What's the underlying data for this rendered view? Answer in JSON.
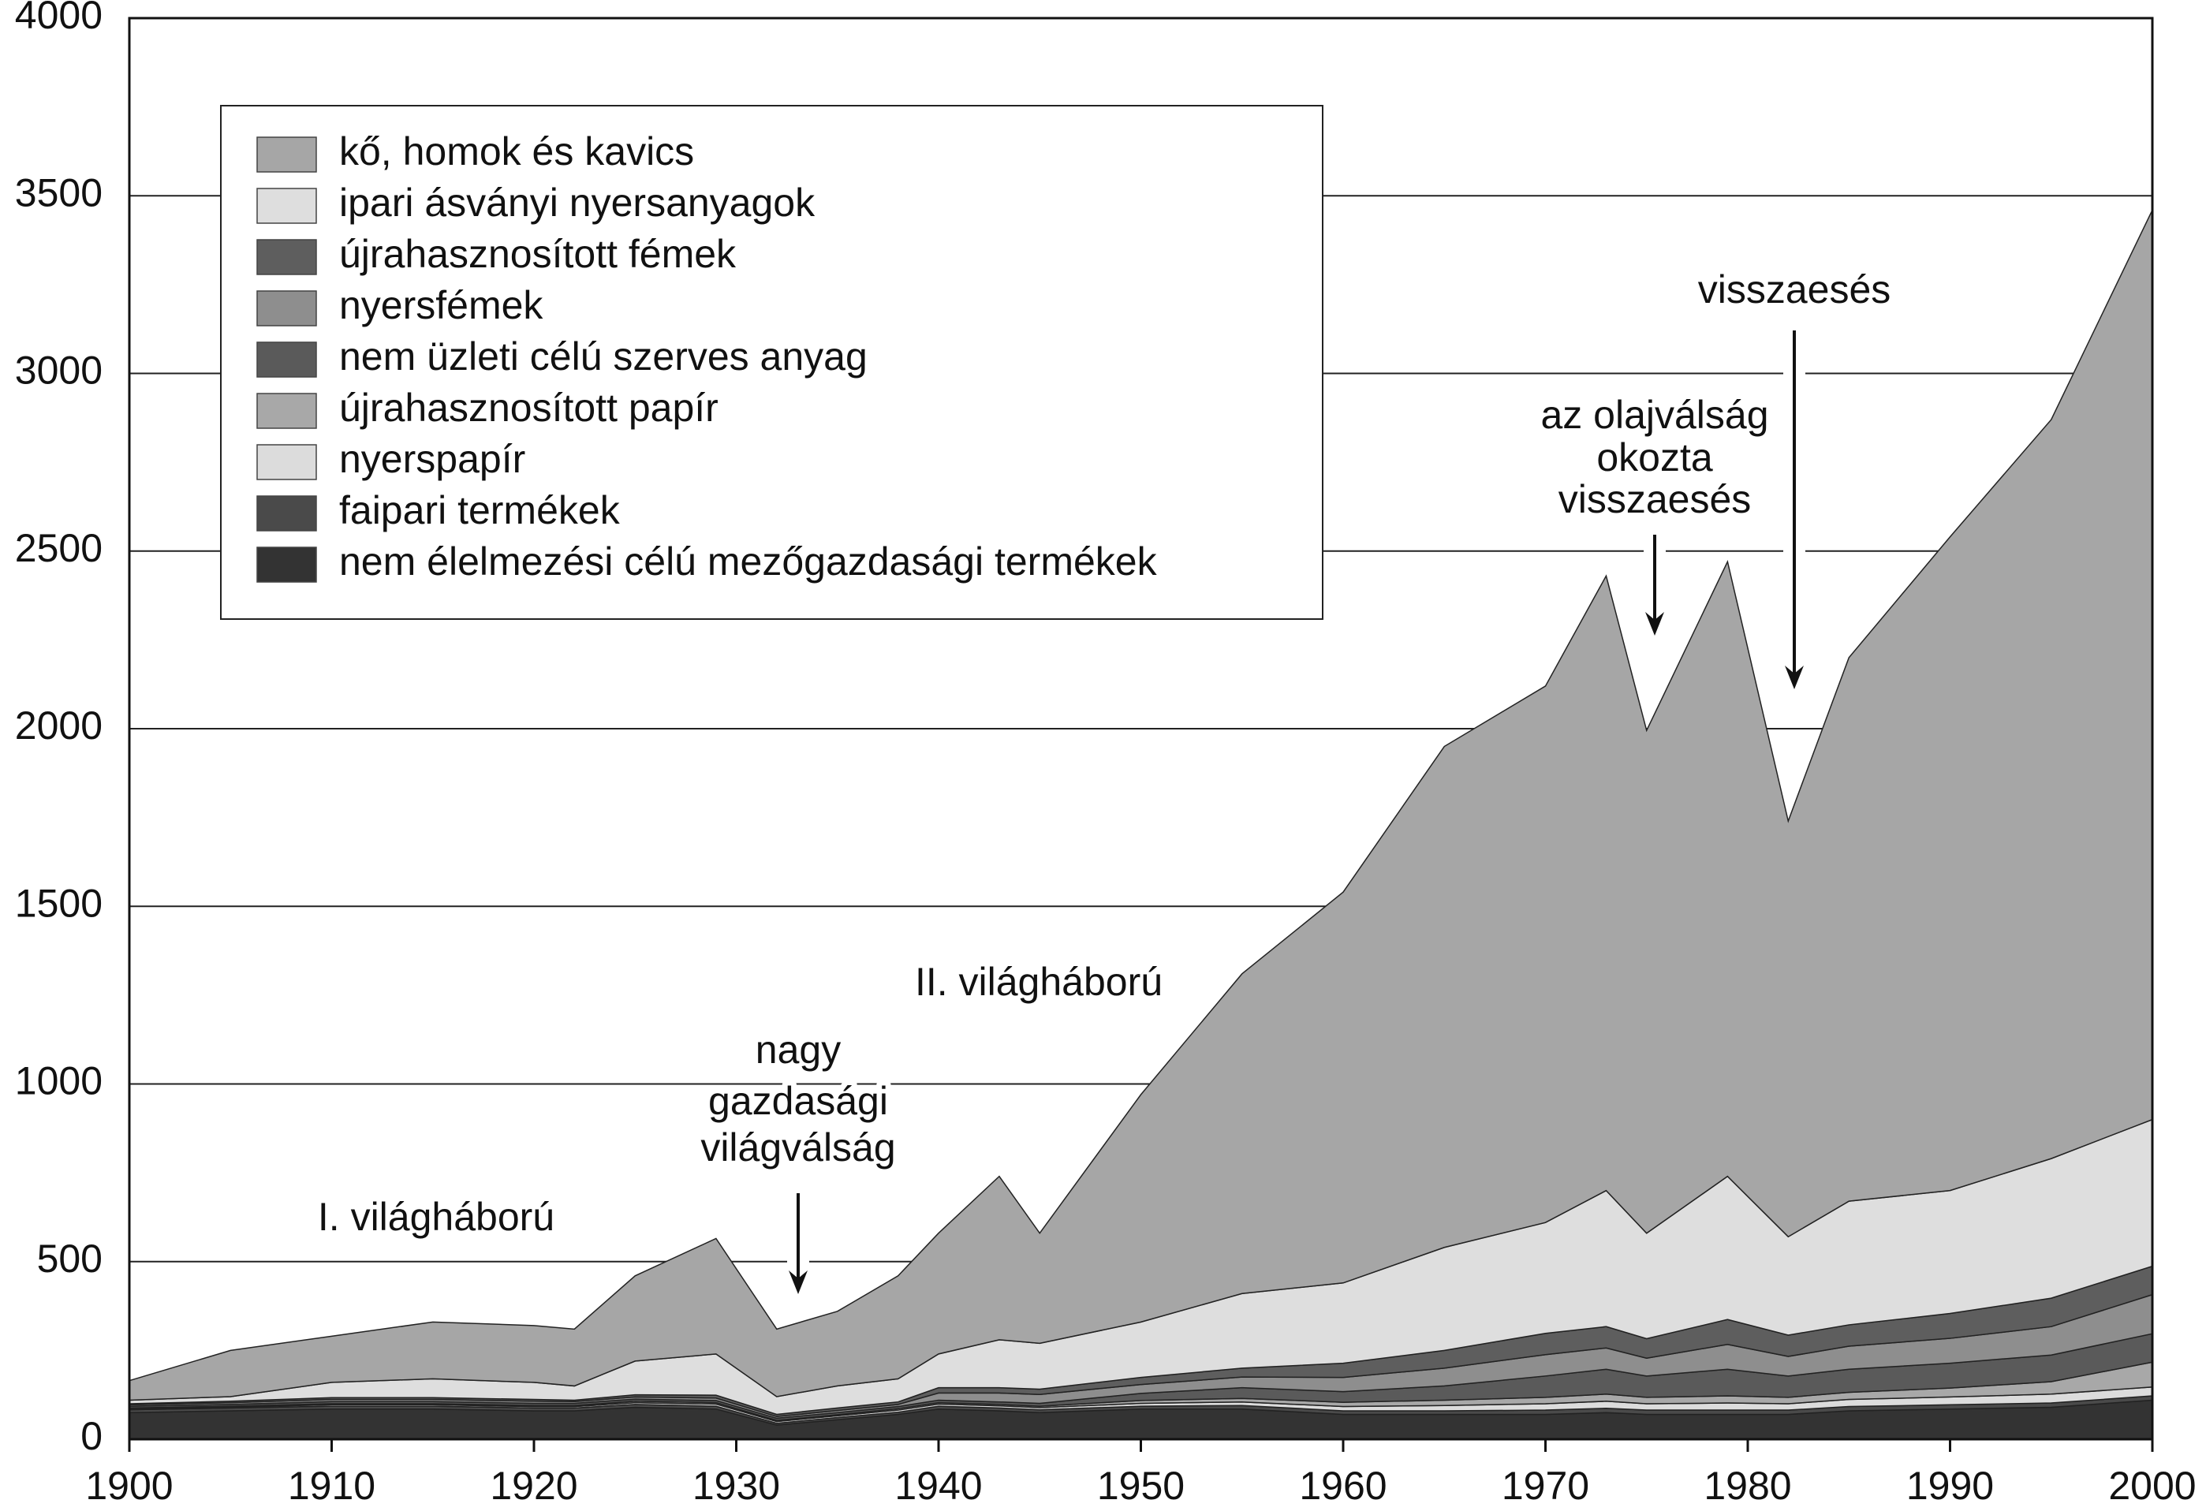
{
  "chart_data": {
    "type": "stacked-area",
    "x": [
      1900,
      1905,
      1910,
      1915,
      1920,
      1922,
      1925,
      1929,
      1932,
      1935,
      1938,
      1940,
      1943,
      1945,
      1950,
      1955,
      1960,
      1965,
      1970,
      1973,
      1975,
      1979,
      1982,
      1985,
      1990,
      1995,
      2000
    ],
    "xlim": [
      1900,
      2000
    ],
    "xticks": [
      1900,
      1910,
      1920,
      1930,
      1940,
      1950,
      1960,
      1970,
      1980,
      1990,
      2000
    ],
    "ylim": [
      0,
      4000
    ],
    "yticks": [
      0,
      500,
      1000,
      1500,
      2000,
      2500,
      3000,
      3500,
      4000
    ],
    "grid": true,
    "legend": "upper left",
    "series": [
      {
        "name": "kő, homok és kavics",
        "color": "#a6a6a6",
        "values": [
          55,
          130,
          130,
          160,
          160,
          160,
          240,
          325,
          190,
          210,
          290,
          340,
          460,
          310,
          640,
          900,
          1100,
          1410,
          1510,
          1730,
          1415,
          1730,
          1170,
          1530,
          1840,
          2080,
          2560
        ]
      },
      {
        "name": "ipari ásványi nyersanyagok",
        "color": "#dedede",
        "values": [
          10,
          13,
          43,
          53,
          48,
          40,
          95,
          116,
          50,
          62,
          65,
          95,
          135,
          129,
          156,
          210,
          226,
          290,
          312,
          383,
          297,
          403,
          277,
          348,
          346,
          393,
          413
        ]
      },
      {
        "name": "újrahasznosított fémek",
        "color": "#5e5e5e",
        "values": [
          3,
          4,
          5,
          5,
          5,
          4,
          6,
          8,
          6,
          7,
          7,
          15,
          15,
          15,
          20,
          25,
          40,
          50,
          60,
          60,
          55,
          70,
          60,
          60,
          70,
          80,
          80
        ]
      },
      {
        "name": "nyersfémek",
        "color": "#8e8e8e",
        "values": [
          4,
          5,
          6,
          6,
          6,
          5,
          6,
          7,
          5,
          6,
          6,
          20,
          25,
          25,
          25,
          30,
          40,
          50,
          60,
          60,
          50,
          70,
          55,
          65,
          70,
          80,
          110
        ]
      },
      {
        "name": "nem üzleti célú szerves anyag",
        "color": "#5a5a5a",
        "values": [
          5,
          5,
          6,
          6,
          6,
          6,
          6,
          6,
          6,
          6,
          6,
          7,
          7,
          8,
          20,
          30,
          30,
          40,
          60,
          70,
          60,
          75,
          60,
          65,
          70,
          75,
          80
        ]
      },
      {
        "name": "újrahasznosított papír",
        "color": "#a8a8a8",
        "values": [
          2,
          2,
          3,
          3,
          3,
          3,
          4,
          4,
          3,
          3,
          4,
          4,
          4,
          4,
          8,
          10,
          12,
          15,
          18,
          20,
          18,
          20,
          18,
          20,
          25,
          35,
          70
        ]
      },
      {
        "name": "nyerspapír",
        "color": "#dcdcdc",
        "values": [
          3,
          3,
          4,
          4,
          4,
          4,
          5,
          6,
          5,
          5,
          6,
          6,
          6,
          6,
          8,
          10,
          12,
          15,
          18,
          20,
          18,
          20,
          18,
          20,
          22,
          25,
          25
        ]
      },
      {
        "name": "faipari termékek",
        "color": "#4a4a4a",
        "values": [
          8,
          8,
          8,
          8,
          8,
          8,
          8,
          8,
          5,
          6,
          6,
          8,
          8,
          8,
          8,
          10,
          10,
          10,
          12,
          12,
          12,
          12,
          12,
          12,
          12,
          12,
          12
        ]
      },
      {
        "name": "nem élelmezési célú mezőgazdasági termékek",
        "color": "#333333",
        "values": [
          75,
          80,
          85,
          85,
          80,
          80,
          90,
          85,
          40,
          55,
          70,
          85,
          80,
          75,
          85,
          85,
          70,
          70,
          70,
          75,
          70,
          70,
          70,
          80,
          85,
          90,
          110
        ]
      }
    ],
    "annotations": [
      {
        "lines": [
          "I. világháború"
        ]
      },
      {
        "lines": [
          "nagy",
          "gazdasági",
          "világválság"
        ]
      },
      {
        "lines": [
          "II. világháború"
        ]
      },
      {
        "lines": [
          "az olajválság",
          "okozta",
          "visszaesés"
        ]
      },
      {
        "lines": [
          "visszaesés"
        ]
      }
    ]
  }
}
